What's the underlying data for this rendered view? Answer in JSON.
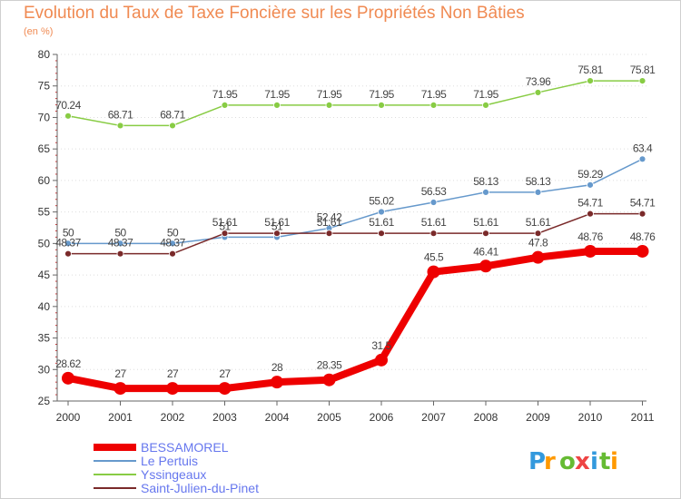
{
  "chart_data": {
    "type": "line",
    "title": "Evolution du Taux de Taxe Foncière sur les Propriétés Non Bâties",
    "ylabel": "(en %)",
    "xlabel": "",
    "ylim": [
      25,
      80
    ],
    "yticks": [
      25,
      30,
      35,
      40,
      45,
      50,
      55,
      60,
      65,
      70,
      75,
      80
    ],
    "categories": [
      "2000",
      "2001",
      "2002",
      "2003",
      "2004",
      "2005",
      "2006",
      "2007",
      "2008",
      "2009",
      "2010",
      "2011"
    ],
    "grid": "horizontal dotted",
    "legend_position": "bottom-left",
    "series": [
      {
        "name": "Yssingeaux",
        "color": "#88cc44",
        "values": [
          70.24,
          68.71,
          68.71,
          71.95,
          71.95,
          71.95,
          71.95,
          71.95,
          71.95,
          73.96,
          75.81,
          75.81
        ],
        "labels": [
          "70.24",
          "68.71",
          "68.71",
          "71.95",
          "71.95",
          "71.95",
          "71.95",
          "71.95",
          "71.95",
          "73.96",
          "75.81",
          "75.81"
        ]
      },
      {
        "name": "Le Pertuis",
        "color": "#6699cc",
        "values": [
          50,
          50,
          50,
          51,
          51,
          52.42,
          55.02,
          56.53,
          58.13,
          58.13,
          59.29,
          63.4
        ],
        "labels": [
          "50",
          "50",
          "50",
          "51",
          "51",
          "52.42",
          "55.02",
          "56.53",
          "58.13",
          "58.13",
          "59.29",
          "63.4"
        ]
      },
      {
        "name": "Saint-Julien-du-Pinet",
        "color": "#7a2a2a",
        "values": [
          48.37,
          48.37,
          48.37,
          51.61,
          51.61,
          51.61,
          51.61,
          51.61,
          51.61,
          51.61,
          54.71,
          54.71
        ],
        "labels": [
          "48.37",
          "48.37",
          "48.37",
          "51.61",
          "51.61",
          "51.61",
          "51.61",
          "51.61",
          "51.61",
          "51.61",
          "54.71",
          "54.71"
        ]
      },
      {
        "name": "BESSAMOREL",
        "color": "#ee0000",
        "values": [
          28.62,
          27,
          27,
          27,
          28,
          28.35,
          31.5,
          45.5,
          46.41,
          47.8,
          48.76,
          48.76
        ],
        "labels": [
          "28.62",
          "27",
          "27",
          "27",
          "28",
          "28.35",
          "31.5",
          "45.5",
          "46.41",
          "47.8",
          "48.76",
          "48.76"
        ]
      }
    ],
    "legend": [
      "BESSAMOREL",
      "Le Pertuis",
      "Yssingeaux",
      "Saint-Julien-du-Pinet"
    ]
  },
  "logo": {
    "text": "Proxiti"
  }
}
